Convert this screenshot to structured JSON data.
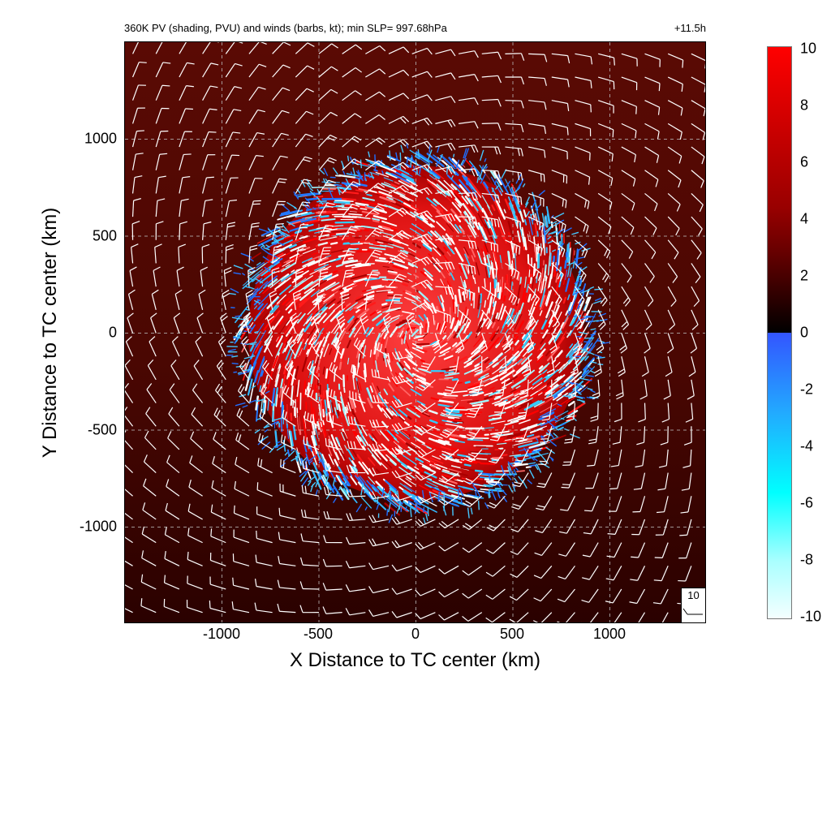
{
  "chart_data": {
    "type": "heatmap",
    "title": "360K PV (shading, PVU) and winds (barbs, kt); min SLP= 997.68hPa",
    "time_label": "+11.5h",
    "xlabel": "X Distance to TC center (km)",
    "ylabel": "Y Distance to TC center (km)",
    "xlim": [
      -1500,
      1500
    ],
    "ylim": [
      -1500,
      1500
    ],
    "x_ticks": [
      "-1000",
      "-500",
      "0",
      "500",
      "1000"
    ],
    "y_ticks": [
      "1000",
      "500",
      "0",
      "-500",
      "-1000"
    ],
    "grid": "dashed",
    "field": "360K potential vorticity (PVU)",
    "background_pv": 3.5,
    "core_radius_km": 900,
    "colorbar": {
      "min": -10,
      "max": 10,
      "ticks": [
        "10",
        "8",
        "6",
        "4",
        "2",
        "0",
        "-2",
        "-4",
        "-6",
        "-8",
        "-10"
      ],
      "colors": {
        "positive_high": "#ff0000",
        "positive_mid": "#990000",
        "zero_pos": "#000000",
        "zero_neg": "#3355ff",
        "negative_mid": "#00ffff",
        "negative_low": "#f4ffff"
      }
    },
    "wind_barbs": {
      "units": "kt",
      "reference_speed": "10",
      "rotation": "cyclonic",
      "color": "#ffffff"
    }
  }
}
